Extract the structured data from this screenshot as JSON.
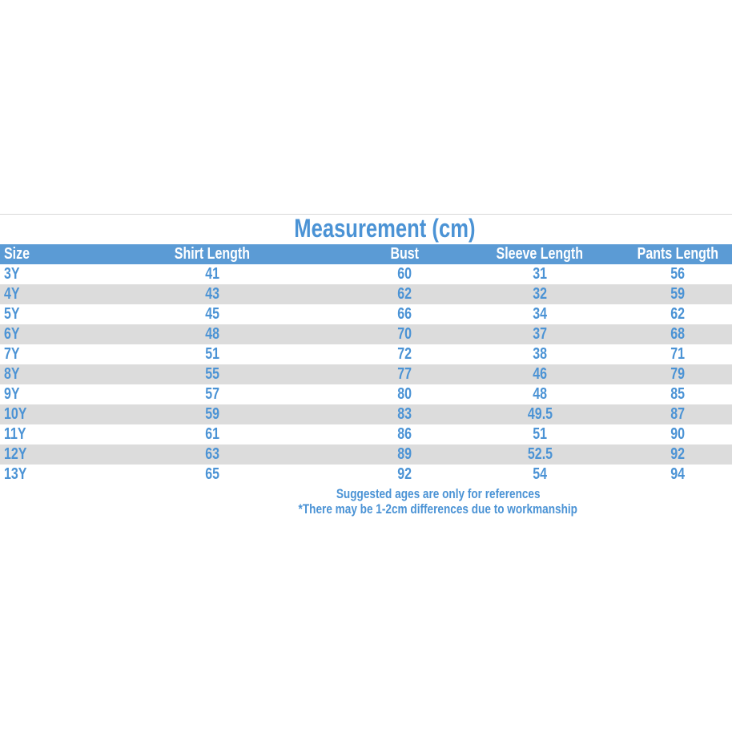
{
  "chart_data": {
    "type": "table",
    "title": "Measurement (cm)",
    "columns": [
      "Size",
      "Shirt Length",
      "Bust",
      "Sleeve Length",
      "Pants Length"
    ],
    "rows": [
      [
        "3Y",
        41,
        60,
        31,
        56
      ],
      [
        "4Y",
        43,
        62,
        32,
        59
      ],
      [
        "5Y",
        45,
        66,
        34,
        62
      ],
      [
        "6Y",
        48,
        70,
        37,
        68
      ],
      [
        "7Y",
        51,
        72,
        38,
        71
      ],
      [
        "8Y",
        55,
        77,
        46,
        79
      ],
      [
        "9Y",
        57,
        80,
        48,
        85
      ],
      [
        "10Y",
        59,
        83,
        49.5,
        87
      ],
      [
        "11Y",
        61,
        86,
        51,
        90
      ],
      [
        "12Y",
        63,
        89,
        52.5,
        92
      ],
      [
        "13Y",
        65,
        92,
        54,
        94
      ]
    ],
    "notes": [
      "Suggested ages are only for references",
      "*There may be 1-2cm differences due to workmanship"
    ]
  },
  "colors": {
    "header_background": "#5b9bd5",
    "header_text": "#ffffff",
    "body_text_blue": "#4b93d5",
    "row_stripe_gray": "#dcdcdc",
    "divider_line": "#d8d8d8",
    "page_background": "#ffffff"
  }
}
